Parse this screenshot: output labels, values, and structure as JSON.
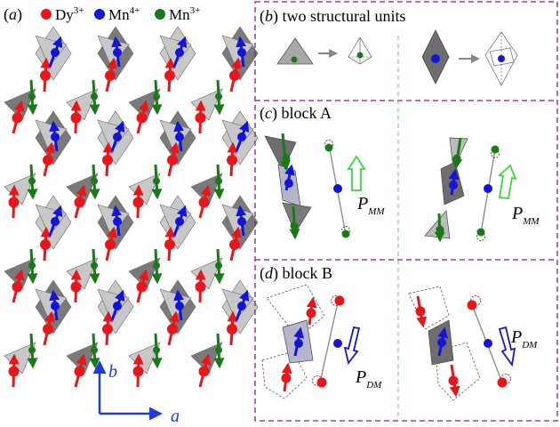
{
  "colors": {
    "dy": "#e8151b",
    "mn4": "#1414d8",
    "mn3": "#1a7a1a",
    "dark_poly": "#7a7a7a",
    "light_poly": "#c8c8c8",
    "frame": "#8b1a8b",
    "divider": "#66cc66",
    "pmm_arrow": "#33dd33",
    "pdm_arrow": "#1414d8",
    "bond": "#888888",
    "axes": "#1e3cd6"
  },
  "panel_a": {
    "label_letter": "a",
    "legend": [
      {
        "ion": "Dy",
        "charge": "3+",
        "color_key": "dy"
      },
      {
        "ion": "Mn",
        "charge": "4+",
        "color_key": "mn4"
      },
      {
        "ion": "Mn",
        "charge": "3+",
        "color_key": "mn3"
      }
    ],
    "axis_b": "b",
    "axis_a": "a"
  },
  "panel_b": {
    "letter": "b",
    "title": "two structural units"
  },
  "panel_c": {
    "letter": "c",
    "title": "block A",
    "p_main": "P",
    "p_sub": "MM"
  },
  "panel_d": {
    "letter": "d",
    "title": "block B",
    "p_main": "P",
    "p_sub": "DM"
  }
}
